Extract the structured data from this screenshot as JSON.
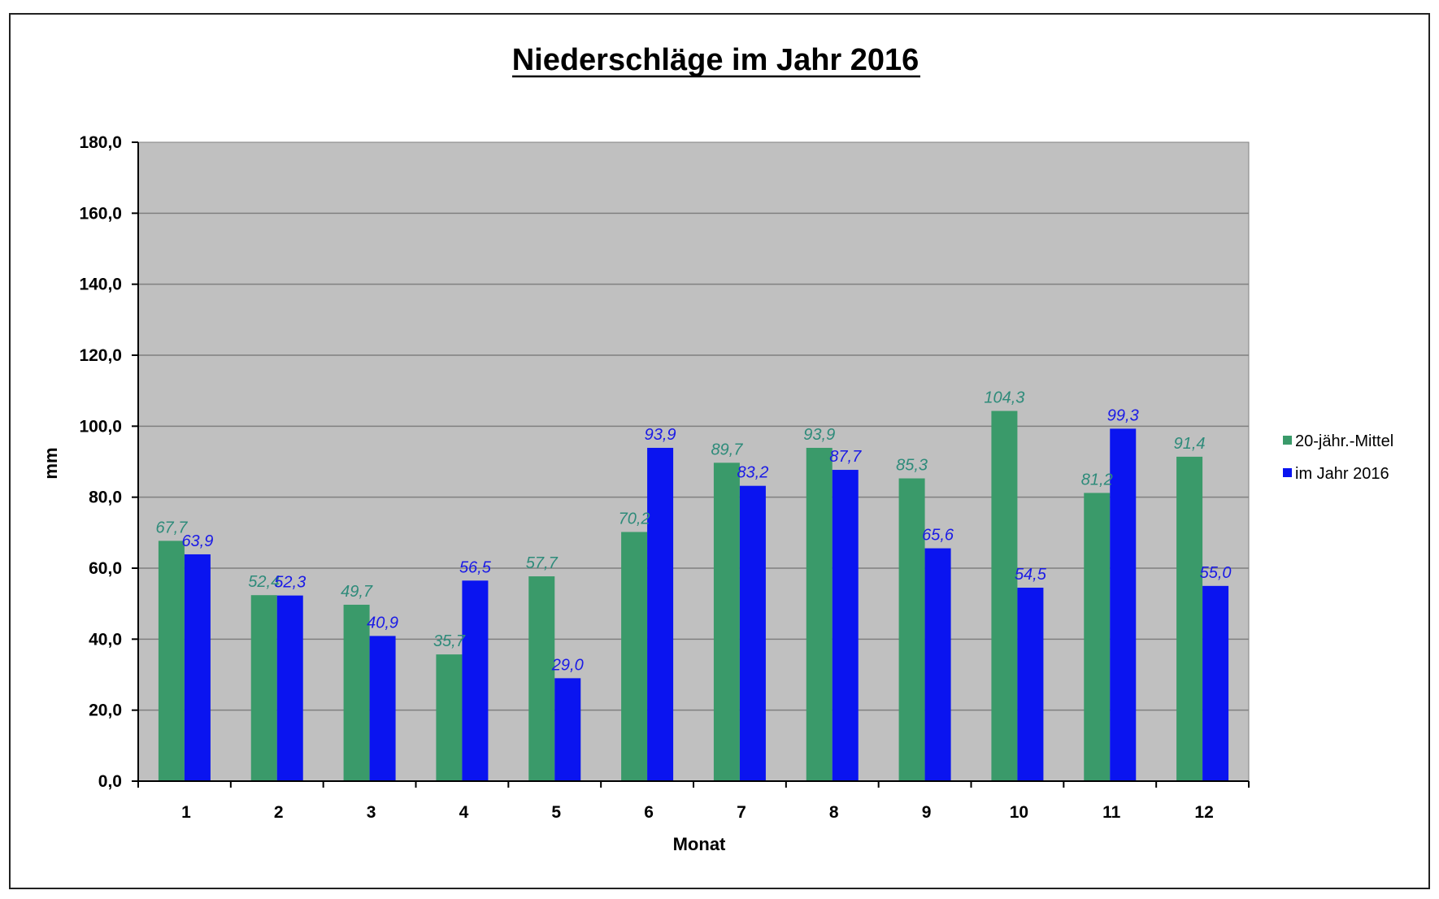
{
  "chart_data": {
    "type": "bar",
    "title": "Niederschläge im Jahr  2016",
    "xlabel": "Monat",
    "ylabel": "mm",
    "ylim": [
      0,
      180
    ],
    "yticks": [
      "0,0",
      "20,0",
      "40,0",
      "60,0",
      "80,0",
      "100,0",
      "120,0",
      "140,0",
      "160,0",
      "180,0"
    ],
    "ytick_values": [
      0,
      20,
      40,
      60,
      80,
      100,
      120,
      140,
      160,
      180
    ],
    "categories": [
      "1",
      "2",
      "3",
      "4",
      "5",
      "6",
      "7",
      "8",
      "9",
      "10",
      "11",
      "12"
    ],
    "grid": true,
    "legend_position": "right",
    "plot_background": "#c0c0c0",
    "series": [
      {
        "name": "20-jähr.-Mittel",
        "color": "#3a9a6a",
        "label_color": "#2e8b7a",
        "values": [
          67.7,
          52.4,
          49.7,
          35.7,
          57.7,
          70.2,
          89.7,
          93.9,
          85.3,
          104.3,
          81.2,
          91.4
        ],
        "labels": [
          "67,7",
          "52,4",
          "49,7",
          "35,7",
          "57,7",
          "70,2",
          "89,7",
          "93,9",
          "85,3",
          "104,3",
          "81,2",
          "91,4"
        ]
      },
      {
        "name": "im Jahr 2016",
        "color": "#0a14f0",
        "label_color": "#1a1ae6",
        "values": [
          63.9,
          52.3,
          40.9,
          56.5,
          29.0,
          93.9,
          83.2,
          87.7,
          65.6,
          54.5,
          99.3,
          55.0
        ],
        "labels": [
          "63,9",
          "52,3",
          "40,9",
          "56,5",
          "29,0",
          "93,9",
          "83,2",
          "87,7",
          "65,6",
          "54,5",
          "99,3",
          "55,0"
        ]
      }
    ]
  }
}
